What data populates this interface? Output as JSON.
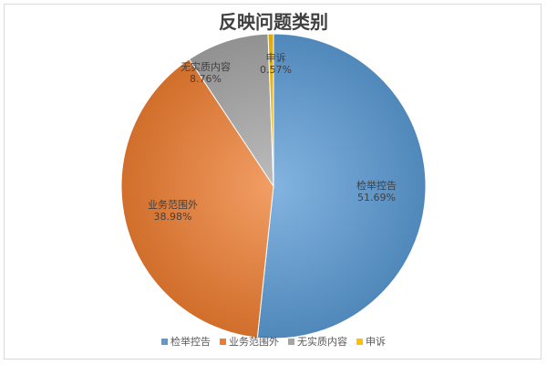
{
  "chart_data": {
    "type": "pie",
    "title": "反映问题类别",
    "slices": [
      {
        "label": "检举控告",
        "value": 51.69,
        "value_text": "51.69%",
        "color": "#5b9bd5"
      },
      {
        "label": "业务范围外",
        "value": 38.98,
        "value_text": "38.98%",
        "color": "#ed7d31"
      },
      {
        "label": "无实质内容",
        "value": 8.76,
        "value_text": "8.76%",
        "color": "#a5a5a5"
      },
      {
        "label": "申诉",
        "value": 0.57,
        "value_text": "0.57%",
        "color": "#ffc000"
      }
    ],
    "legend_position": "bottom"
  }
}
